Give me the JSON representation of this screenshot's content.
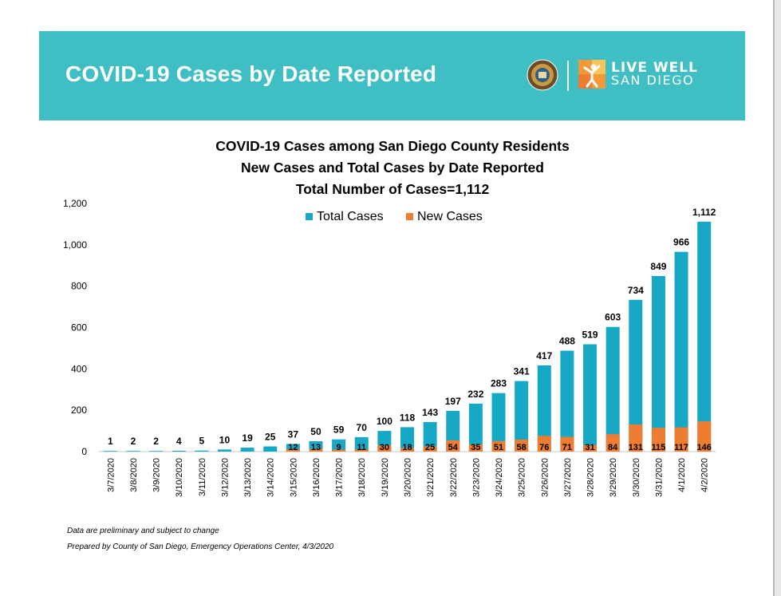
{
  "banner": {
    "title": "COVID-19 Cases by Date Reported",
    "logo_line1": "LIVE WELL",
    "logo_line2": "SAN DIEGO"
  },
  "chart_titles": {
    "line1": "COVID-19 Cases among San Diego County Residents",
    "line2": "New Cases and Total Cases by Date Reported",
    "line3": "Total Number of Cases=1,112"
  },
  "footnotes": {
    "line1": "Data are preliminary and subject to change",
    "line2": "Prepared by County of San Diego, Emergency Operations Center, 4/3/2020"
  },
  "colors": {
    "banner": "#3fbfc4",
    "total": "#17a8c6",
    "new": "#ef7d31"
  },
  "chart_data": {
    "type": "bar",
    "categories": [
      "3/7/2020",
      "3/8/2020",
      "3/9/2020",
      "3/10/2020",
      "3/11/2020",
      "3/12/2020",
      "3/13/2020",
      "3/14/2020",
      "3/15/2020",
      "3/16/2020",
      "3/17/2020",
      "3/18/2020",
      "3/19/2020",
      "3/20/2020",
      "3/21/2020",
      "3/22/2020",
      "3/23/2020",
      "3/24/2020",
      "3/25/2020",
      "3/26/2020",
      "3/27/2020",
      "3/28/2020",
      "3/29/2020",
      "3/30/2020",
      "3/31/2020",
      "4/1/2020",
      "4/2/2020"
    ],
    "series": [
      {
        "name": "Total Cases",
        "values": [
          1,
          2,
          2,
          4,
          5,
          10,
          19,
          25,
          37,
          50,
          59,
          70,
          100,
          118,
          143,
          197,
          232,
          283,
          341,
          417,
          488,
          519,
          603,
          734,
          849,
          966,
          1112
        ]
      },
      {
        "name": "New Cases",
        "values": [
          null,
          null,
          null,
          null,
          null,
          null,
          null,
          null,
          12,
          13,
          9,
          11,
          30,
          18,
          25,
          54,
          35,
          51,
          58,
          76,
          71,
          31,
          84,
          131,
          115,
          117,
          146
        ]
      }
    ],
    "yticks": [
      "0",
      "200",
      "400",
      "600",
      "800",
      "1,000",
      "1,200"
    ],
    "ylim": [
      0,
      1200
    ],
    "legend": "top-center",
    "grid": false,
    "total_labels": [
      "1",
      "2",
      "2",
      "4",
      "5",
      "10",
      "19",
      "25",
      "37",
      "50",
      "59",
      "70",
      "100",
      "118",
      "143",
      "197",
      "232",
      "283",
      "341",
      "417",
      "488",
      "519",
      "603",
      "734",
      "849",
      "966",
      "1,112"
    ],
    "new_labels": [
      "",
      "",
      "",
      "",
      "",
      "",
      "",
      "",
      "12",
      "13",
      "9",
      "11",
      "30",
      "18",
      "25",
      "54",
      "35",
      "51",
      "58",
      "76",
      "71",
      "31",
      "84",
      "131",
      "115",
      "117",
      "146"
    ]
  }
}
